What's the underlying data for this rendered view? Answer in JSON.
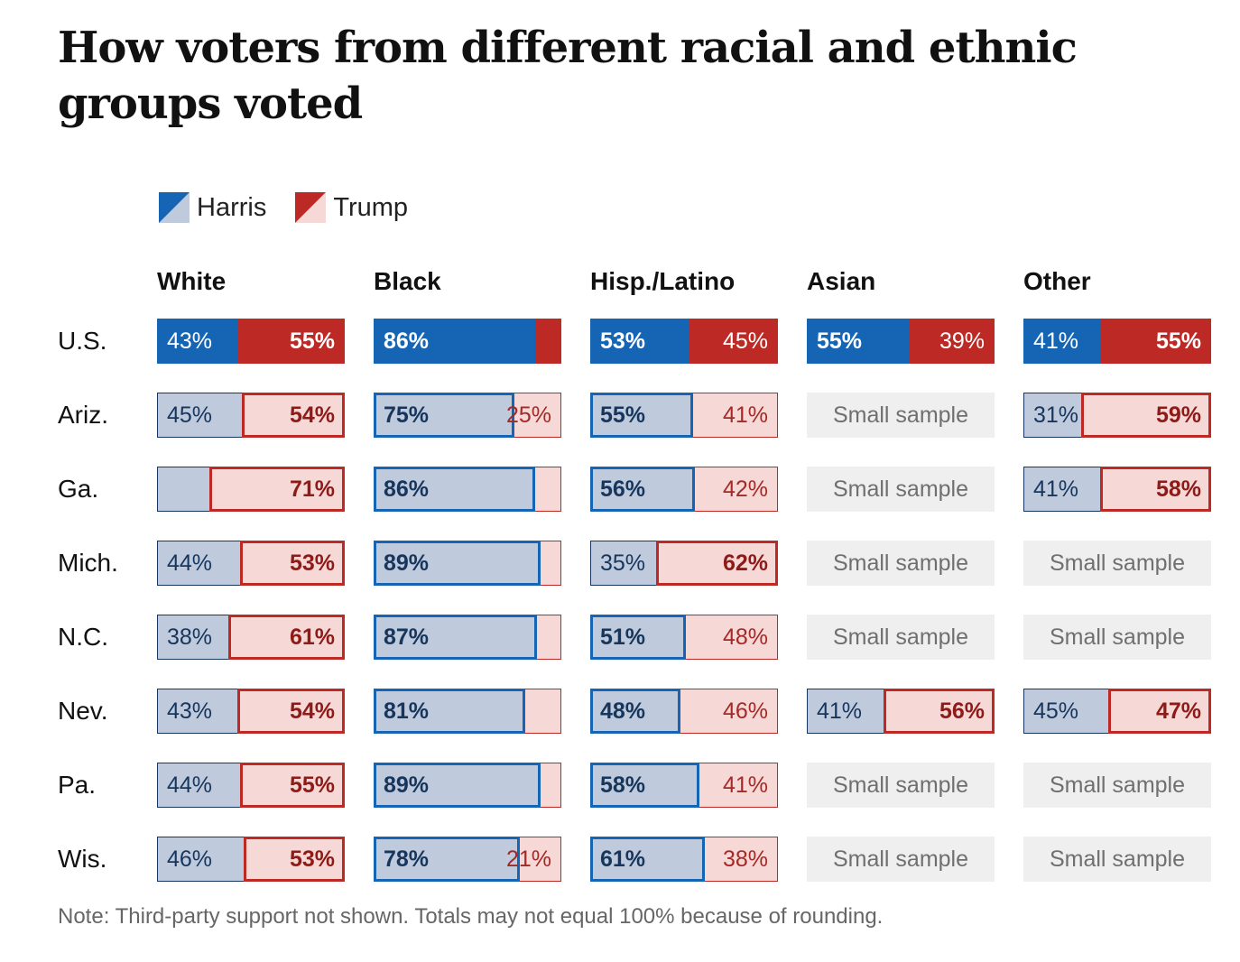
{
  "title": "How voters from different racial and ethnic groups voted",
  "legend": [
    {
      "name": "Harris",
      "color": "#1565b4",
      "light": "#bfcadc"
    },
    {
      "name": "Trump",
      "color": "#bd2a25",
      "light": "#f6d8d6"
    }
  ],
  "note": "Note: Third-party support not shown. Totals may not equal 100% because of rounding.",
  "chart_data": {
    "type": "bar",
    "groups": [
      "White",
      "Black",
      "Hisp./Latino",
      "Asian",
      "Other"
    ],
    "rows": [
      {
        "label": "U.S.",
        "national": true,
        "cells": [
          {
            "harris": 43,
            "trump": 55
          },
          {
            "harris": 86,
            "trump": 12
          },
          {
            "harris": 53,
            "trump": 45
          },
          {
            "harris": 55,
            "trump": 39
          },
          {
            "harris": 41,
            "trump": 55
          }
        ]
      },
      {
        "label": "Ariz.",
        "cells": [
          {
            "harris": 45,
            "trump": 54
          },
          {
            "harris": 75,
            "trump": 25
          },
          {
            "harris": 55,
            "trump": 41
          },
          null,
          {
            "harris": 31,
            "trump": 59
          }
        ]
      },
      {
        "label": "Ga.",
        "cells": [
          {
            "harris": 28,
            "trump": 71,
            "hide_harris_label": true
          },
          {
            "harris": 86,
            "trump": 12
          },
          {
            "harris": 56,
            "trump": 42
          },
          null,
          {
            "harris": 41,
            "trump": 58
          }
        ]
      },
      {
        "label": "Mich.",
        "cells": [
          {
            "harris": 44,
            "trump": 53
          },
          {
            "harris": 89,
            "trump": 9
          },
          {
            "harris": 35,
            "trump": 62
          },
          null,
          null
        ]
      },
      {
        "label": "N.C.",
        "cells": [
          {
            "harris": 38,
            "trump": 61
          },
          {
            "harris": 87,
            "trump": 12
          },
          {
            "harris": 51,
            "trump": 48
          },
          null,
          null
        ]
      },
      {
        "label": "Nev.",
        "cells": [
          {
            "harris": 43,
            "trump": 54
          },
          {
            "harris": 81,
            "trump": 18
          },
          {
            "harris": 48,
            "trump": 46
          },
          {
            "harris": 41,
            "trump": 56
          },
          {
            "harris": 45,
            "trump": 47
          }
        ]
      },
      {
        "label": "Pa.",
        "cells": [
          {
            "harris": 44,
            "trump": 55
          },
          {
            "harris": 89,
            "trump": 10
          },
          {
            "harris": 58,
            "trump": 41
          },
          null,
          null
        ]
      },
      {
        "label": "Wis.",
        "cells": [
          {
            "harris": 46,
            "trump": 53
          },
          {
            "harris": 78,
            "trump": 21
          },
          {
            "harris": 61,
            "trump": 38
          },
          null,
          null
        ]
      }
    ],
    "small_sample_text": "Small sample"
  }
}
